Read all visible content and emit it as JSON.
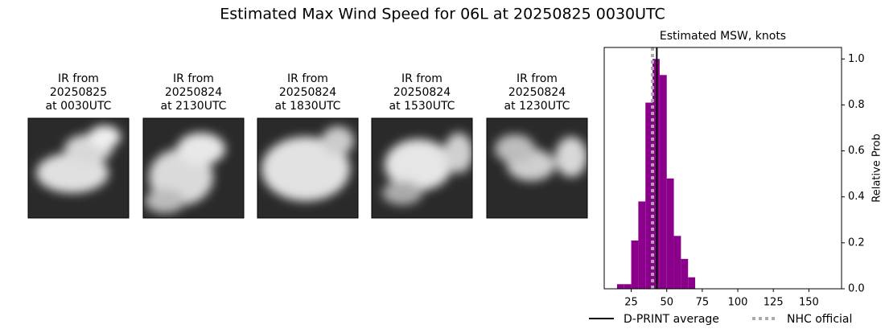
{
  "title": "Estimated Max Wind Speed for 06L at 20250825 0030UTC",
  "panels": [
    {
      "lines": [
        "IR from",
        "20250825",
        "at 0030UTC"
      ]
    },
    {
      "lines": [
        "IR from",
        "20250824",
        "at 2130UTC"
      ]
    },
    {
      "lines": [
        "IR from",
        "20250824",
        "at 1830UTC"
      ]
    },
    {
      "lines": [
        "IR from",
        "20250824",
        "at 1530UTC"
      ]
    },
    {
      "lines": [
        "IR from",
        "20250824",
        "at 1230UTC"
      ]
    }
  ],
  "chart_data": {
    "type": "histogram",
    "title": "Estimated MSW, knots",
    "ylabel": "Relative Prob",
    "bins": [
      15,
      20,
      25,
      30,
      35,
      40,
      45,
      50,
      55,
      60,
      65,
      70
    ],
    "values": [
      0.02,
      0.02,
      0.21,
      0.38,
      0.81,
      1.0,
      0.93,
      0.48,
      0.23,
      0.13,
      0.05
    ],
    "color": "#8b008b",
    "xlim": [
      6,
      173
    ],
    "xticks": [
      25,
      50,
      75,
      100,
      125,
      150
    ],
    "ylim": [
      0,
      1.05
    ],
    "yticks": [
      {
        "value": 0,
        "label": "0.0"
      },
      {
        "value": 0.2,
        "label": "0.2"
      },
      {
        "value": 0.4,
        "label": "0.4"
      },
      {
        "value": 0.6,
        "label": "0.6"
      },
      {
        "value": 0.8,
        "label": "0.8"
      },
      {
        "value": 1.0,
        "label": "1.0"
      }
    ],
    "lines": [
      {
        "name": "D-PRINT average",
        "x": 43,
        "color": "#000000",
        "style": "solid"
      },
      {
        "name": "NHC official",
        "x": 40,
        "color": "#aaaaaa",
        "style": "dotted"
      }
    ]
  }
}
